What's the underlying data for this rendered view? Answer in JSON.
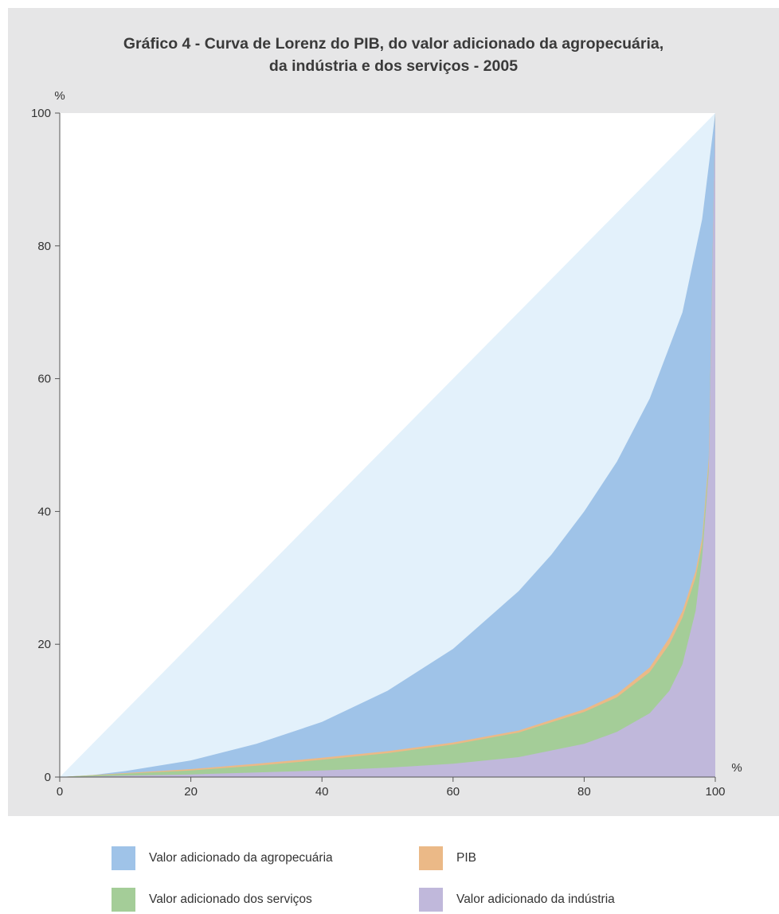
{
  "chart_data": {
    "type": "area",
    "title": "Gráfico 4 - Curva de Lorenz do PIB, do valor adicionado da agropecuária,",
    "subtitle": "da indústria e dos serviços - 2005",
    "xlabel": "%",
    "ylabel": "%",
    "xlim": [
      0,
      100
    ],
    "ylim": [
      0,
      100
    ],
    "x_ticks": [
      0,
      20,
      40,
      60,
      80,
      100
    ],
    "y_ticks": [
      0,
      20,
      40,
      60,
      80,
      100
    ],
    "grid": false,
    "legend_position": "bottom",
    "equality_line": [
      [
        0,
        0
      ],
      [
        100,
        100
      ]
    ],
    "equality_fill_color": "#e3f1fb",
    "series": [
      {
        "name": "Valor adicionado da agropecuária",
        "color": "#9fc3e8",
        "points": [
          [
            0,
            0
          ],
          [
            5,
            0.3
          ],
          [
            10,
            0.9
          ],
          [
            20,
            2.5
          ],
          [
            30,
            5
          ],
          [
            40,
            8.3
          ],
          [
            50,
            13
          ],
          [
            60,
            19.3
          ],
          [
            70,
            28
          ],
          [
            75,
            33.5
          ],
          [
            80,
            40
          ],
          [
            85,
            47.5
          ],
          [
            90,
            57
          ],
          [
            95,
            70
          ],
          [
            98,
            84
          ],
          [
            100,
            100
          ]
        ]
      },
      {
        "name": "PIB",
        "color": "#ebb987",
        "points": [
          [
            0,
            0
          ],
          [
            10,
            0.6
          ],
          [
            20,
            1.2
          ],
          [
            30,
            2
          ],
          [
            40,
            2.9
          ],
          [
            50,
            3.9
          ],
          [
            60,
            5.2
          ],
          [
            70,
            7
          ],
          [
            80,
            10.2
          ],
          [
            85,
            12.5
          ],
          [
            90,
            16.5
          ],
          [
            93,
            21
          ],
          [
            95,
            25
          ],
          [
            97,
            31
          ],
          [
            98,
            36
          ],
          [
            99,
            48
          ],
          [
            100,
            100
          ]
        ]
      },
      {
        "name": "Valor adicionado dos serviços",
        "color": "#a4cd98",
        "points": [
          [
            0,
            0
          ],
          [
            10,
            0.5
          ],
          [
            20,
            1
          ],
          [
            30,
            1.7
          ],
          [
            40,
            2.6
          ],
          [
            50,
            3.6
          ],
          [
            60,
            4.9
          ],
          [
            70,
            6.7
          ],
          [
            80,
            9.8
          ],
          [
            85,
            12
          ],
          [
            90,
            15.8
          ],
          [
            93,
            20
          ],
          [
            95,
            24
          ],
          [
            97,
            30
          ],
          [
            98,
            35
          ],
          [
            99,
            47
          ],
          [
            100,
            100
          ]
        ]
      },
      {
        "name": "Valor adicionado da indústria",
        "color": "#c0b8db",
        "points": [
          [
            0,
            0
          ],
          [
            10,
            0.2
          ],
          [
            20,
            0.4
          ],
          [
            30,
            0.7
          ],
          [
            40,
            1
          ],
          [
            50,
            1.4
          ],
          [
            60,
            2
          ],
          [
            70,
            3
          ],
          [
            80,
            5
          ],
          [
            85,
            6.8
          ],
          [
            90,
            9.6
          ],
          [
            93,
            13
          ],
          [
            95,
            17
          ],
          [
            97,
            25
          ],
          [
            98,
            33
          ],
          [
            99,
            46
          ],
          [
            100,
            100
          ]
        ]
      }
    ]
  }
}
